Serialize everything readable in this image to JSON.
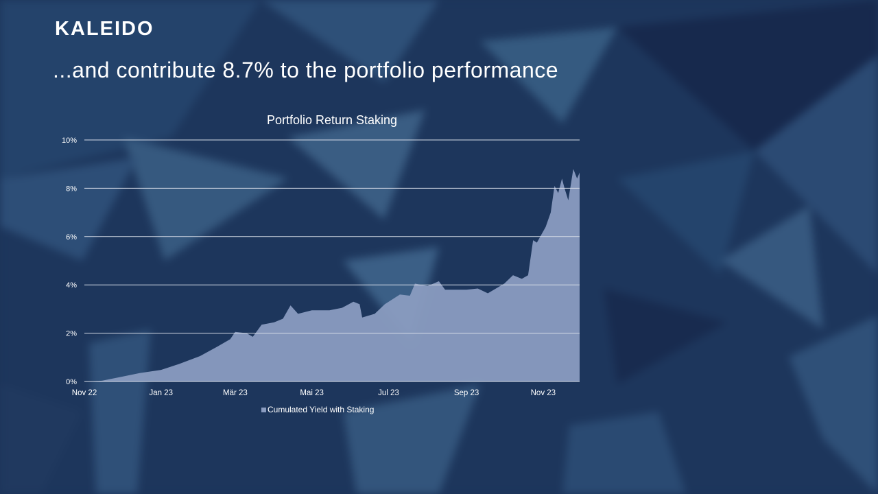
{
  "logo": "KALEIDO",
  "headline": "...and contribute 8.7% to the portfolio performance",
  "colors": {
    "background": "#1c345a",
    "area_fill": "#8a9cc0",
    "grid": "#d8dde8",
    "text": "#ffffff"
  },
  "chart_data": {
    "type": "area",
    "title": "Portfolio Return Staking",
    "xlabel": "",
    "ylabel": "",
    "ylim": [
      0,
      10
    ],
    "yticks": [
      "0%",
      "2%",
      "4%",
      "6%",
      "8%",
      "10%"
    ],
    "xticks": [
      {
        "date": "2022-11-01",
        "label": "Nov 22"
      },
      {
        "date": "2023-01-01",
        "label": "Jan 23"
      },
      {
        "date": "2023-03-01",
        "label": "Mär 23"
      },
      {
        "date": "2023-05-01",
        "label": "Mai 23"
      },
      {
        "date": "2023-07-01",
        "label": "Jul 23"
      },
      {
        "date": "2023-09-01",
        "label": "Sep 23"
      },
      {
        "date": "2023-11-01",
        "label": "Nov 23"
      }
    ],
    "xlim": [
      "2022-11-01",
      "2023-11-30"
    ],
    "grid": true,
    "legend_position": "bottom",
    "series": [
      {
        "name": "Cumulated Yield with Staking",
        "points": [
          [
            "2022-11-01",
            0
          ],
          [
            "2022-11-15",
            0.03
          ],
          [
            "2022-12-01",
            0.2
          ],
          [
            "2022-12-15",
            0.35
          ],
          [
            "2023-01-01",
            0.48
          ],
          [
            "2023-01-15",
            0.72
          ],
          [
            "2023-02-01",
            1.05
          ],
          [
            "2023-02-15",
            1.45
          ],
          [
            "2023-02-25",
            1.75
          ],
          [
            "2023-03-01",
            2.05
          ],
          [
            "2023-03-10",
            2.0
          ],
          [
            "2023-03-15",
            1.85
          ],
          [
            "2023-03-22",
            2.35
          ],
          [
            "2023-04-01",
            2.45
          ],
          [
            "2023-04-08",
            2.6
          ],
          [
            "2023-04-14",
            3.15
          ],
          [
            "2023-04-20",
            2.8
          ],
          [
            "2023-05-01",
            2.95
          ],
          [
            "2023-05-15",
            2.95
          ],
          [
            "2023-05-25",
            3.05
          ],
          [
            "2023-06-03",
            3.3
          ],
          [
            "2023-06-08",
            3.2
          ],
          [
            "2023-06-10",
            2.65
          ],
          [
            "2023-06-20",
            2.8
          ],
          [
            "2023-06-28",
            3.2
          ],
          [
            "2023-07-10",
            3.6
          ],
          [
            "2023-07-18",
            3.55
          ],
          [
            "2023-07-22",
            4.05
          ],
          [
            "2023-08-01",
            3.95
          ],
          [
            "2023-08-10",
            4.15
          ],
          [
            "2023-08-15",
            3.8
          ],
          [
            "2023-09-01",
            3.8
          ],
          [
            "2023-09-10",
            3.85
          ],
          [
            "2023-09-18",
            3.65
          ],
          [
            "2023-10-01",
            4.05
          ],
          [
            "2023-10-08",
            4.4
          ],
          [
            "2023-10-15",
            4.25
          ],
          [
            "2023-10-20",
            4.4
          ],
          [
            "2023-10-24",
            5.85
          ],
          [
            "2023-10-27",
            5.75
          ],
          [
            "2023-11-03",
            6.4
          ],
          [
            "2023-11-07",
            7.0
          ],
          [
            "2023-11-10",
            8.1
          ],
          [
            "2023-11-13",
            7.8
          ],
          [
            "2023-11-16",
            8.4
          ],
          [
            "2023-11-18",
            8.0
          ],
          [
            "2023-11-21",
            7.5
          ],
          [
            "2023-11-25",
            8.8
          ],
          [
            "2023-11-28",
            8.4
          ],
          [
            "2023-11-30",
            8.65
          ]
        ]
      }
    ]
  }
}
